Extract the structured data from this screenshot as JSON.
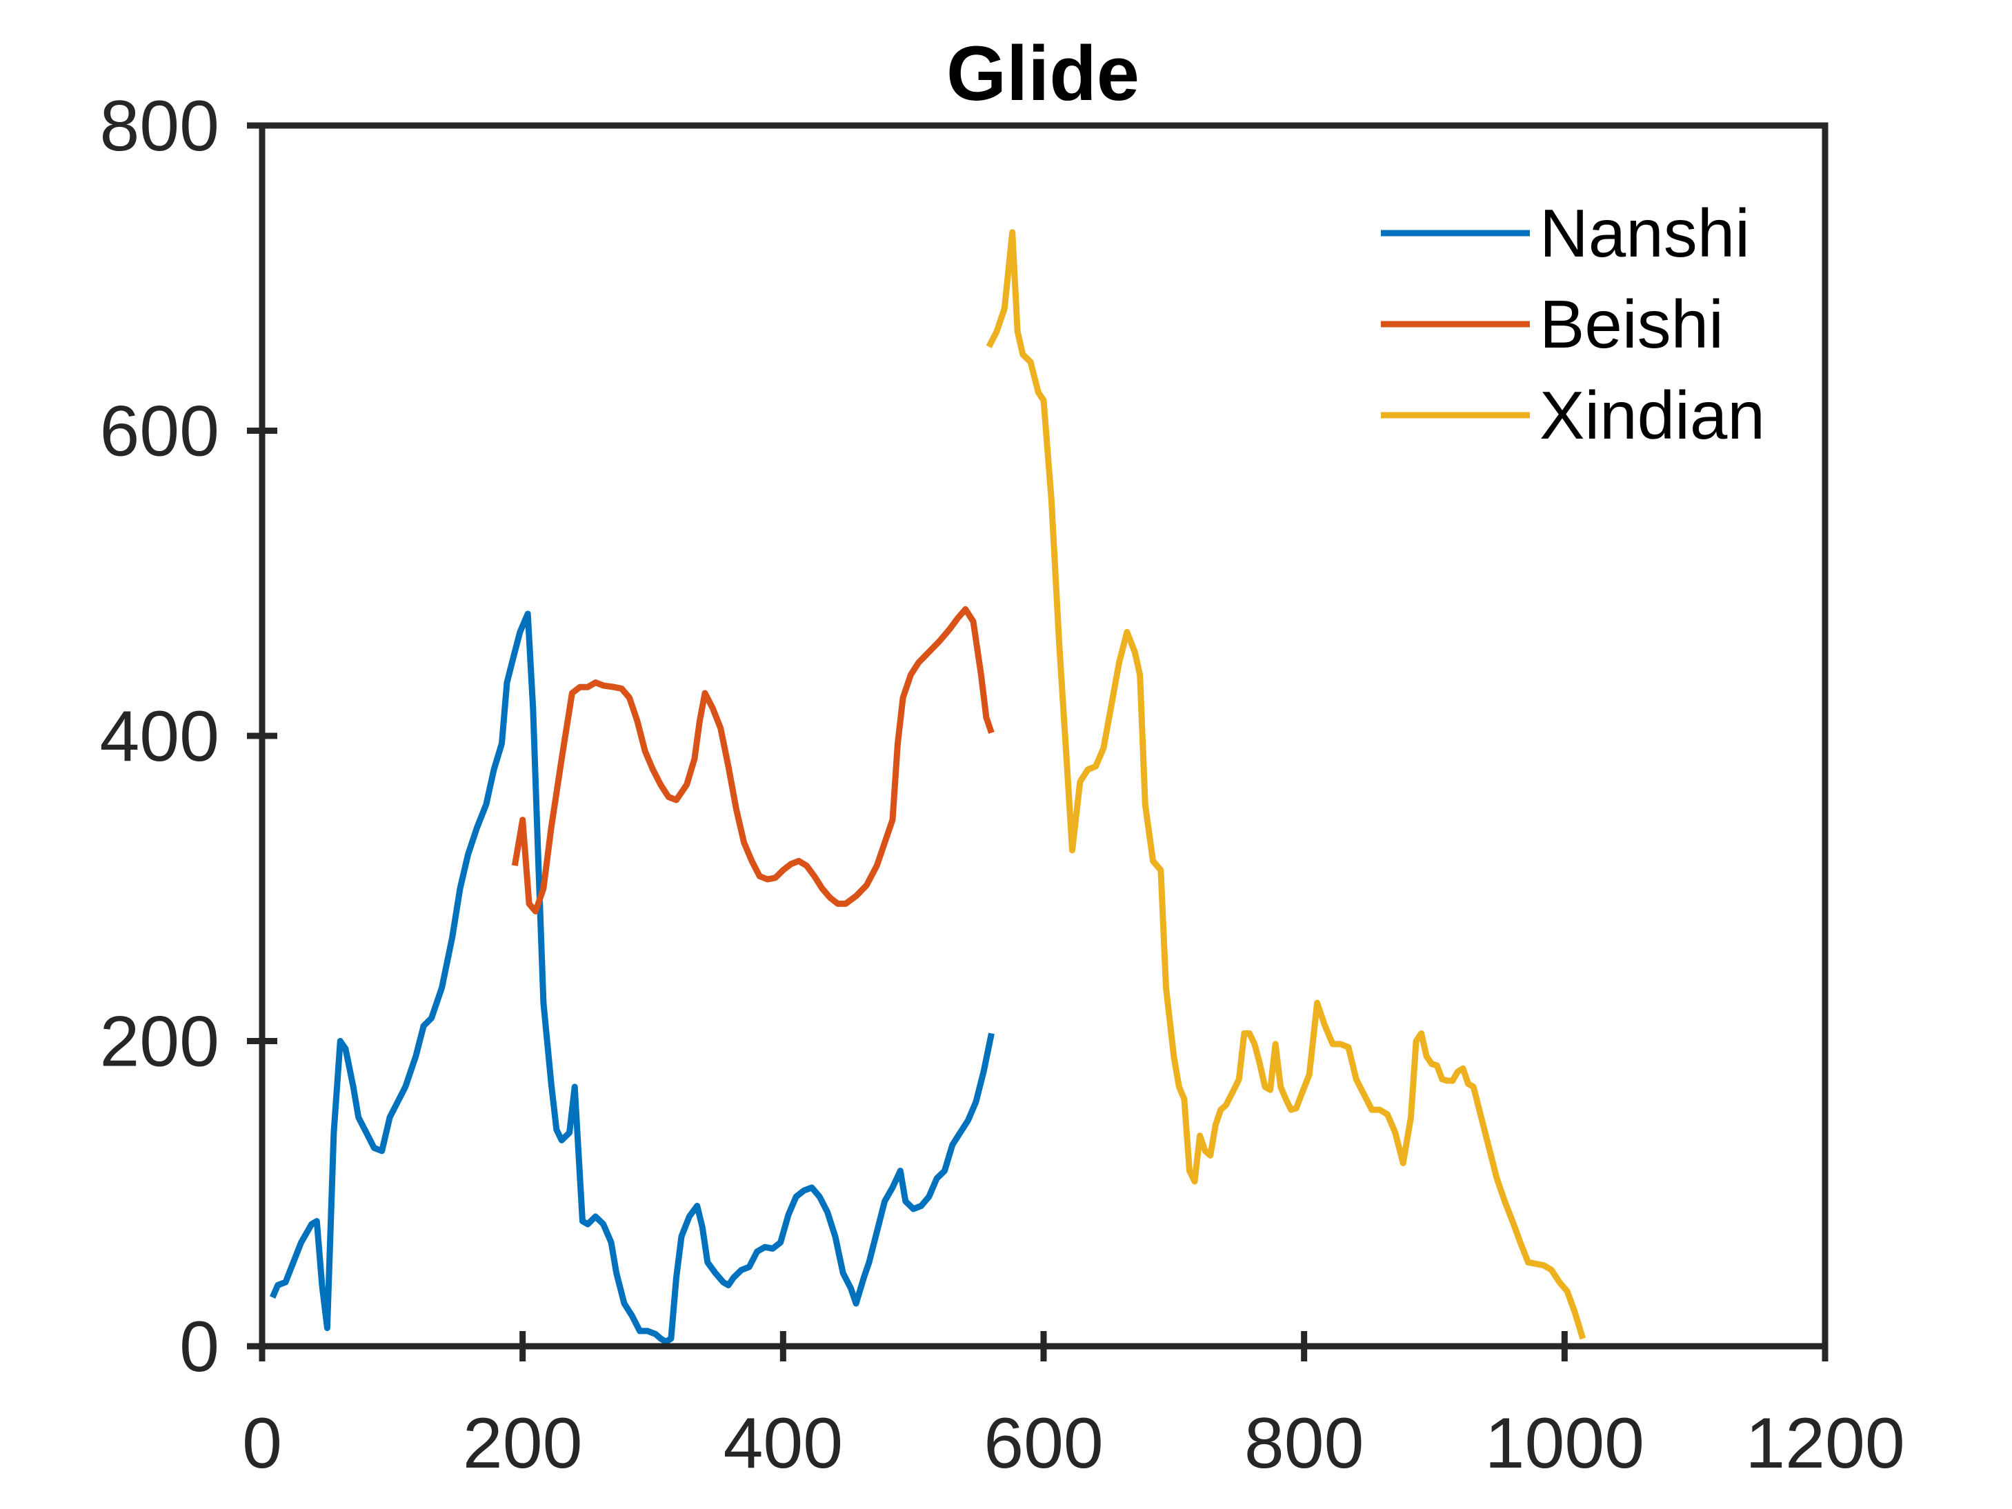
{
  "chart_data": {
    "type": "line",
    "title": "Glide",
    "xlabel": "",
    "ylabel": "",
    "xlim": [
      0,
      1200
    ],
    "ylim": [
      0,
      800
    ],
    "xticks": [
      0,
      200,
      400,
      600,
      800,
      1000,
      1200
    ],
    "yticks": [
      0,
      200,
      400,
      600,
      800
    ],
    "xtick_labels": [
      "0",
      "200",
      "400",
      "600",
      "800",
      "1000",
      "1200"
    ],
    "ytick_labels": [
      "0",
      "200",
      "400",
      "600",
      "800"
    ],
    "grid": false,
    "legend_position": "top-right",
    "series": [
      {
        "name": "Nanshi",
        "color": "#0072BD",
        "points": [
          [
            8,
            32
          ],
          [
            12,
            40
          ],
          [
            18,
            42
          ],
          [
            24,
            55
          ],
          [
            30,
            68
          ],
          [
            38,
            80
          ],
          [
            42,
            82
          ],
          [
            46,
            40
          ],
          [
            50,
            12
          ],
          [
            55,
            140
          ],
          [
            60,
            200
          ],
          [
            64,
            195
          ],
          [
            70,
            170
          ],
          [
            74,
            150
          ],
          [
            80,
            140
          ],
          [
            86,
            130
          ],
          [
            92,
            128
          ],
          [
            98,
            150
          ],
          [
            104,
            160
          ],
          [
            110,
            170
          ],
          [
            118,
            190
          ],
          [
            124,
            210
          ],
          [
            130,
            215
          ],
          [
            138,
            235
          ],
          [
            146,
            268
          ],
          [
            152,
            300
          ],
          [
            158,
            322
          ],
          [
            165,
            340
          ],
          [
            172,
            355
          ],
          [
            178,
            378
          ],
          [
            184,
            395
          ],
          [
            188,
            435
          ],
          [
            194,
            455
          ],
          [
            198,
            468
          ],
          [
            204,
            480
          ],
          [
            208,
            418
          ],
          [
            212,
            320
          ],
          [
            216,
            225
          ],
          [
            222,
            172
          ],
          [
            226,
            142
          ],
          [
            230,
            135
          ],
          [
            236,
            140
          ],
          [
            240,
            170
          ],
          [
            246,
            82
          ],
          [
            250,
            80
          ],
          [
            256,
            85
          ],
          [
            262,
            80
          ],
          [
            268,
            68
          ],
          [
            272,
            48
          ],
          [
            278,
            28
          ],
          [
            284,
            20
          ],
          [
            290,
            10
          ],
          [
            296,
            10
          ],
          [
            302,
            8
          ],
          [
            306,
            5
          ],
          [
            310,
            3
          ],
          [
            314,
            5
          ],
          [
            318,
            45
          ],
          [
            322,
            72
          ],
          [
            328,
            85
          ],
          [
            334,
            92
          ],
          [
            338,
            78
          ],
          [
            342,
            55
          ],
          [
            348,
            48
          ],
          [
            354,
            42
          ],
          [
            358,
            40
          ],
          [
            362,
            45
          ],
          [
            368,
            50
          ],
          [
            374,
            52
          ],
          [
            380,
            62
          ],
          [
            386,
            65
          ],
          [
            392,
            64
          ],
          [
            398,
            68
          ],
          [
            404,
            86
          ],
          [
            410,
            98
          ],
          [
            416,
            102
          ],
          [
            422,
            104
          ],
          [
            428,
            98
          ],
          [
            434,
            88
          ],
          [
            440,
            72
          ],
          [
            446,
            48
          ],
          [
            452,
            38
          ],
          [
            456,
            28
          ],
          [
            462,
            45
          ],
          [
            466,
            55
          ],
          [
            472,
            75
          ],
          [
            478,
            95
          ],
          [
            484,
            104
          ],
          [
            490,
            115
          ],
          [
            494,
            95
          ],
          [
            500,
            90
          ],
          [
            506,
            92
          ],
          [
            512,
            98
          ],
          [
            518,
            110
          ],
          [
            524,
            115
          ],
          [
            530,
            132
          ],
          [
            536,
            140
          ],
          [
            542,
            148
          ],
          [
            548,
            160
          ],
          [
            554,
            180
          ],
          [
            560,
            205
          ]
        ]
      },
      {
        "name": "Beishi",
        "color": "#D95319",
        "points": [
          [
            194,
            315
          ],
          [
            200,
            345
          ],
          [
            205,
            290
          ],
          [
            210,
            285
          ],
          [
            216,
            300
          ],
          [
            222,
            340
          ],
          [
            230,
            385
          ],
          [
            238,
            428
          ],
          [
            244,
            432
          ],
          [
            250,
            432
          ],
          [
            256,
            435
          ],
          [
            262,
            433
          ],
          [
            270,
            432
          ],
          [
            276,
            431
          ],
          [
            282,
            425
          ],
          [
            288,
            410
          ],
          [
            294,
            390
          ],
          [
            300,
            378
          ],
          [
            306,
            368
          ],
          [
            312,
            360
          ],
          [
            318,
            358
          ],
          [
            326,
            368
          ],
          [
            332,
            385
          ],
          [
            336,
            410
          ],
          [
            340,
            428
          ],
          [
            346,
            418
          ],
          [
            352,
            405
          ],
          [
            358,
            380
          ],
          [
            364,
            352
          ],
          [
            370,
            330
          ],
          [
            376,
            318
          ],
          [
            382,
            308
          ],
          [
            388,
            306
          ],
          [
            394,
            307
          ],
          [
            400,
            312
          ],
          [
            406,
            316
          ],
          [
            412,
            318
          ],
          [
            418,
            315
          ],
          [
            424,
            308
          ],
          [
            430,
            300
          ],
          [
            436,
            294
          ],
          [
            442,
            290
          ],
          [
            448,
            290
          ],
          [
            456,
            295
          ],
          [
            464,
            302
          ],
          [
            472,
            315
          ],
          [
            478,
            330
          ],
          [
            484,
            345
          ],
          [
            488,
            395
          ],
          [
            492,
            425
          ],
          [
            498,
            440
          ],
          [
            504,
            448
          ],
          [
            512,
            455
          ],
          [
            520,
            462
          ],
          [
            528,
            470
          ],
          [
            534,
            477
          ],
          [
            540,
            483
          ],
          [
            546,
            475
          ],
          [
            552,
            440
          ],
          [
            556,
            412
          ],
          [
            560,
            402
          ]
        ]
      },
      {
        "name": "Xindian",
        "color": "#EDB120",
        "points": [
          [
            558,
            655
          ],
          [
            564,
            665
          ],
          [
            570,
            680
          ],
          [
            576,
            730
          ],
          [
            580,
            665
          ],
          [
            584,
            650
          ],
          [
            590,
            645
          ],
          [
            596,
            625
          ],
          [
            600,
            620
          ],
          [
            606,
            555
          ],
          [
            612,
            460
          ],
          [
            618,
            380
          ],
          [
            622,
            325
          ],
          [
            628,
            370
          ],
          [
            634,
            378
          ],
          [
            640,
            380
          ],
          [
            646,
            392
          ],
          [
            652,
            420
          ],
          [
            658,
            448
          ],
          [
            664,
            468
          ],
          [
            670,
            455
          ],
          [
            674,
            440
          ],
          [
            678,
            355
          ],
          [
            684,
            318
          ],
          [
            690,
            312
          ],
          [
            694,
            235
          ],
          [
            700,
            190
          ],
          [
            704,
            170
          ],
          [
            708,
            162
          ],
          [
            712,
            115
          ],
          [
            716,
            108
          ],
          [
            720,
            138
          ],
          [
            724,
            128
          ],
          [
            728,
            125
          ],
          [
            732,
            145
          ],
          [
            736,
            155
          ],
          [
            740,
            158
          ],
          [
            746,
            168
          ],
          [
            750,
            175
          ],
          [
            754,
            205
          ],
          [
            758,
            205
          ],
          [
            762,
            198
          ],
          [
            766,
            185
          ],
          [
            770,
            170
          ],
          [
            774,
            168
          ],
          [
            778,
            198
          ],
          [
            782,
            170
          ],
          [
            786,
            162
          ],
          [
            790,
            155
          ],
          [
            794,
            156
          ],
          [
            798,
            165
          ],
          [
            804,
            178
          ],
          [
            810,
            225
          ],
          [
            816,
            210
          ],
          [
            822,
            198
          ],
          [
            828,
            198
          ],
          [
            834,
            196
          ],
          [
            840,
            175
          ],
          [
            846,
            165
          ],
          [
            852,
            155
          ],
          [
            858,
            155
          ],
          [
            864,
            152
          ],
          [
            870,
            140
          ],
          [
            876,
            120
          ],
          [
            882,
            150
          ],
          [
            886,
            200
          ],
          [
            890,
            205
          ],
          [
            894,
            190
          ],
          [
            898,
            185
          ],
          [
            902,
            184
          ],
          [
            906,
            175
          ],
          [
            910,
            174
          ],
          [
            914,
            174
          ],
          [
            918,
            180
          ],
          [
            922,
            182
          ],
          [
            926,
            172
          ],
          [
            930,
            170
          ],
          [
            936,
            150
          ],
          [
            942,
            130
          ],
          [
            948,
            110
          ],
          [
            954,
            95
          ],
          [
            960,
            82
          ],
          [
            966,
            68
          ],
          [
            972,
            55
          ],
          [
            978,
            54
          ],
          [
            984,
            53
          ],
          [
            990,
            50
          ],
          [
            996,
            42
          ],
          [
            1002,
            36
          ],
          [
            1008,
            22
          ],
          [
            1014,
            5
          ]
        ]
      }
    ]
  }
}
